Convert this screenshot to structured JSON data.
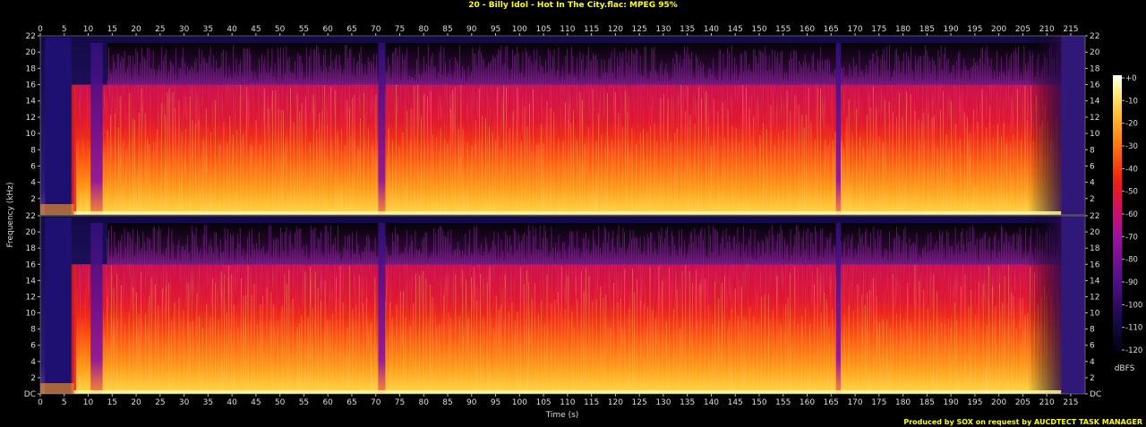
{
  "title": "20 - Billy Idol - Hot In The City.flac: MPEG 95%",
  "footer": "Produced by SOX on request by AUCDTECT TASK MANAGER",
  "chart_data": {
    "type": "heatmap",
    "title": "20 - Billy Idol - Hot In The City.flac: MPEG 95%",
    "xlabel": "Time (s)",
    "ylabel": "Frequency (kHz)",
    "xlim": [
      0,
      218
    ],
    "ylim": [
      0,
      22
    ],
    "x_ticks": [
      0,
      5,
      10,
      15,
      20,
      25,
      30,
      35,
      40,
      45,
      50,
      55,
      60,
      65,
      70,
      75,
      80,
      85,
      90,
      95,
      100,
      105,
      110,
      115,
      120,
      125,
      130,
      135,
      140,
      145,
      150,
      155,
      160,
      165,
      170,
      175,
      180,
      185,
      190,
      195,
      200,
      205,
      210,
      215
    ],
    "y_ticks": [
      2,
      4,
      6,
      8,
      10,
      12,
      14,
      16,
      18,
      20,
      22
    ],
    "y_zero_label": "DC",
    "channels": 2,
    "lowpass_cutoff_khz": 16,
    "colorbar": {
      "label": "dBFS",
      "range": [
        -120,
        0
      ],
      "ticks": [
        "+0",
        "-10",
        "-20",
        "-30",
        "-40",
        "-50",
        "-60",
        "-70",
        "-80",
        "-90",
        "-100",
        "-110",
        "-120"
      ]
    },
    "colormap": [
      "#000000",
      "#1a0a4a",
      "#4a1090",
      "#8a10a0",
      "#c01070",
      "#e81a20",
      "#ff6010",
      "#ffb020",
      "#fff080",
      "#ffffff"
    ],
    "gaps_s": [
      [
        0,
        7
      ],
      [
        10.5,
        13
      ],
      [
        70.5,
        72
      ],
      [
        166,
        167
      ]
    ],
    "fade_out_start_s": 206,
    "track_end_s": 213
  }
}
